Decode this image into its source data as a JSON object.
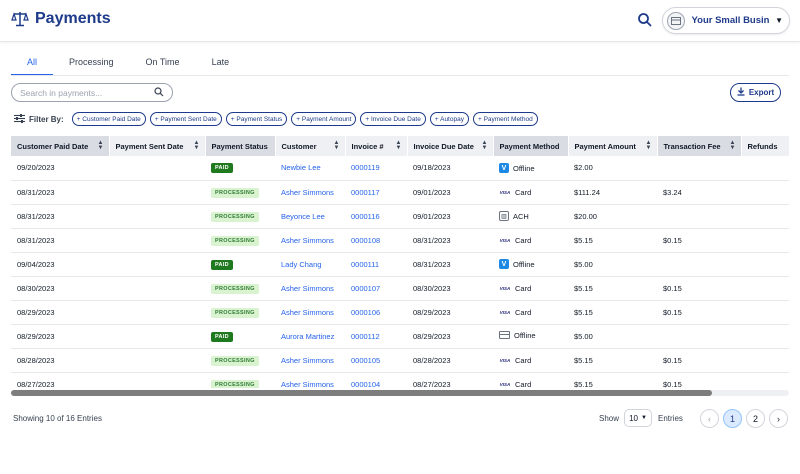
{
  "header": {
    "title": "Payments",
    "account_name": "Your Small Business"
  },
  "tabs": [
    {
      "label": "All",
      "active": true
    },
    {
      "label": "Processing",
      "active": false
    },
    {
      "label": "On Time",
      "active": false
    },
    {
      "label": "Late",
      "active": false
    }
  ],
  "search": {
    "placeholder": "Search in payments..."
  },
  "export_label": "Export",
  "filter": {
    "label": "Filter By:",
    "chips": [
      "+ Customer Paid Date",
      "+ Payment Sent Date",
      "+ Payment Status",
      "+ Payment Amount",
      "+ Invoice Due Date",
      "+ Autopay",
      "+ Payment Method"
    ]
  },
  "table": {
    "columns": [
      "Customer Paid Date",
      "Payment Sent Date",
      "Payment Status",
      "Customer",
      "Invoice #",
      "Invoice Due Date",
      "Payment Method",
      "Payment Amount",
      "Transaction Fee",
      "Refunds"
    ],
    "rows": [
      {
        "paid_date": "09/20/2023",
        "sent_date": "",
        "status": "PAID",
        "customer": "Newbie Lee",
        "invoice": "0000119",
        "due_date": "09/18/2023",
        "method_icon": "venmo-icon",
        "method": "Offline",
        "amount": "$2.00",
        "fee": "",
        "refunds": ""
      },
      {
        "paid_date": "08/31/2023",
        "sent_date": "",
        "status": "PROCESSING",
        "customer": "Asher Simmons",
        "invoice": "0000117",
        "due_date": "09/01/2023",
        "method_icon": "visa-icon",
        "method": "Card",
        "amount": "$111.24",
        "fee": "$3.24",
        "refunds": ""
      },
      {
        "paid_date": "08/31/2023",
        "sent_date": "",
        "status": "PROCESSING",
        "customer": "Beyonce Lee",
        "invoice": "0000116",
        "due_date": "09/01/2023",
        "method_icon": "bank-icon",
        "method": "ACH",
        "amount": "$20.00",
        "fee": "",
        "refunds": ""
      },
      {
        "paid_date": "08/31/2023",
        "sent_date": "",
        "status": "PROCESSING",
        "customer": "Asher Simmons",
        "invoice": "0000108",
        "due_date": "08/31/2023",
        "method_icon": "visa-icon",
        "method": "Card",
        "amount": "$5.15",
        "fee": "$0.15",
        "refunds": ""
      },
      {
        "paid_date": "09/04/2023",
        "sent_date": "",
        "status": "PAID",
        "customer": "Lady Chang",
        "invoice": "0000111",
        "due_date": "08/31/2023",
        "method_icon": "venmo-icon",
        "method": "Offline",
        "amount": "$5.00",
        "fee": "",
        "refunds": ""
      },
      {
        "paid_date": "08/30/2023",
        "sent_date": "",
        "status": "PROCESSING",
        "customer": "Asher Simmons",
        "invoice": "0000107",
        "due_date": "08/30/2023",
        "method_icon": "visa-icon",
        "method": "Card",
        "amount": "$5.15",
        "fee": "$0.15",
        "refunds": ""
      },
      {
        "paid_date": "08/29/2023",
        "sent_date": "",
        "status": "PROCESSING",
        "customer": "Asher Simmons",
        "invoice": "0000106",
        "due_date": "08/29/2023",
        "method_icon": "visa-icon",
        "method": "Card",
        "amount": "$5.15",
        "fee": "$0.15",
        "refunds": ""
      },
      {
        "paid_date": "08/29/2023",
        "sent_date": "",
        "status": "PAID",
        "customer": "Aurora Martinez",
        "invoice": "0000112",
        "due_date": "08/29/2023",
        "method_icon": "card-icon",
        "method": "Offline",
        "amount": "$5.00",
        "fee": "",
        "refunds": ""
      },
      {
        "paid_date": "08/28/2023",
        "sent_date": "",
        "status": "PROCESSING",
        "customer": "Asher Simmons",
        "invoice": "0000105",
        "due_date": "08/28/2023",
        "method_icon": "visa-icon",
        "method": "Card",
        "amount": "$5.15",
        "fee": "$0.15",
        "refunds": ""
      },
      {
        "paid_date": "08/27/2023",
        "sent_date": "",
        "status": "PROCESSING",
        "customer": "Asher Simmons",
        "invoice": "0000104",
        "due_date": "08/27/2023",
        "method_icon": "visa-icon",
        "method": "Card",
        "amount": "$5.15",
        "fee": "$0.15",
        "refunds": ""
      }
    ]
  },
  "footer": {
    "entries_info": "Showing 10 of 16 Entries",
    "show_label": "Show",
    "page_size": "10",
    "entries_label": "Entries",
    "pages": [
      "1",
      "2"
    ],
    "current_page": "1"
  },
  "colors": {
    "brand": "#1e3a8a",
    "link": "#2563eb",
    "paid_badge": "#1f7a1f",
    "processing_badge": "#d9f2d0"
  }
}
